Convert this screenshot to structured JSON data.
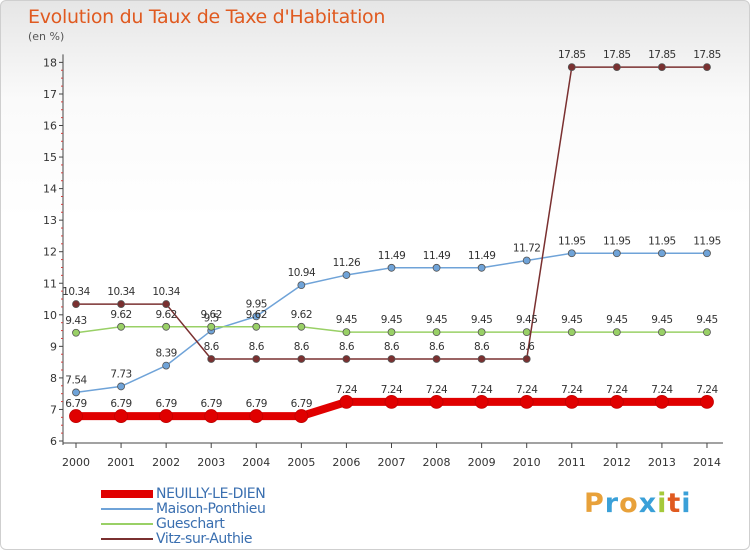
{
  "header": {
    "title": "Evolution du Taux de Taxe d'Habitation",
    "unit": "(en %)"
  },
  "logo": {
    "text": "Proxiti",
    "colors": [
      "#e8a13a",
      "#3aa0d8",
      "#e8a13a",
      "#3aa0d8",
      "#a5c93a",
      "#e05a20",
      "#3aa0d8"
    ]
  },
  "chart_data": {
    "type": "line",
    "x": [
      "2000",
      "2001",
      "2002",
      "2003",
      "2004",
      "2005",
      "2006",
      "2007",
      "2008",
      "2009",
      "2010",
      "2011",
      "2012",
      "2013",
      "2014"
    ],
    "ylim": [
      6,
      18
    ],
    "yticks": [
      "6",
      "7",
      "8",
      "9",
      "10",
      "11",
      "12",
      "13",
      "14",
      "15",
      "16",
      "17",
      "18"
    ],
    "grid": false,
    "legend_position": "bottom-left",
    "series": [
      {
        "name": "NEUILLY-LE-DIEN",
        "color": "#e00000",
        "highlight": true,
        "values": [
          6.79,
          6.79,
          6.79,
          6.79,
          6.79,
          6.79,
          7.24,
          7.24,
          7.24,
          7.24,
          7.24,
          7.24,
          7.24,
          7.24,
          7.24
        ],
        "labels": [
          "6.79",
          "6.79",
          "6.79",
          "6.79",
          "6.79",
          "6.79",
          "7.24",
          "7.24",
          "7.24",
          "7.24",
          "7.24",
          "7.24",
          "7.24",
          "7.24",
          "7.24"
        ]
      },
      {
        "name": "Maison-Ponthieu",
        "color": "#6fa3d8",
        "values": [
          7.54,
          7.73,
          8.39,
          9.5,
          9.95,
          10.94,
          11.26,
          11.49,
          11.49,
          11.49,
          11.72,
          11.95,
          11.95,
          11.95,
          11.95
        ],
        "labels": [
          "7.54",
          "7.73",
          "8.39",
          "9.5",
          "9.95",
          "10.94",
          "11.26",
          "11.49",
          "11.49",
          "11.49",
          "11.72",
          "11.95",
          "11.95",
          "11.95",
          "11.95"
        ]
      },
      {
        "name": "Gueschart",
        "color": "#99d066",
        "values": [
          9.43,
          9.62,
          9.62,
          9.62,
          9.62,
          9.62,
          9.45,
          9.45,
          9.45,
          9.45,
          9.45,
          9.45,
          9.45,
          9.45,
          9.45
        ],
        "labels": [
          "9.43",
          "9.62",
          "9.62",
          "9.62",
          "9.62",
          "9.62",
          "9.45",
          "9.45",
          "9.45",
          "9.45",
          "9.45",
          "9.45",
          "9.45",
          "9.45",
          "9.45"
        ]
      },
      {
        "name": "Vitz-sur-Authie",
        "color": "#7a3030",
        "values": [
          10.34,
          10.34,
          10.34,
          8.6,
          8.6,
          8.6,
          8.6,
          8.6,
          8.6,
          8.6,
          8.6,
          17.85,
          17.85,
          17.85,
          17.85
        ],
        "labels": [
          "10.34",
          "10.34",
          "10.34",
          "8.6",
          "8.6",
          "8.6",
          "8.6",
          "8.6",
          "8.6",
          "8.6",
          "8.6",
          "17.85",
          "17.85",
          "17.85",
          "17.85"
        ]
      }
    ]
  }
}
